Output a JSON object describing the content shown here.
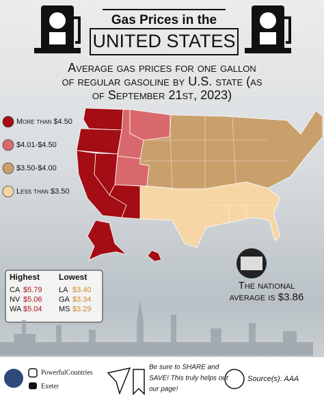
{
  "header": {
    "title_top": "Gas Prices in the",
    "title_main": "UNITED STATES",
    "subtitle_lines": [
      "Average gas prices for one gallon",
      "of regular gasoline by U.S. state (as",
      "of September 21st, 2023)"
    ]
  },
  "legend": [
    {
      "label": "More than $4.50",
      "color": "#a30d13"
    },
    {
      "label": "$4.01-$4.50",
      "color": "#d9686c"
    },
    {
      "label": "$3.50-$4.00",
      "color": "#c9a06c"
    },
    {
      "label": "Less than $3.50",
      "color": "#f7d6a5"
    }
  ],
  "table": {
    "highest": {
      "title": "Highest",
      "rows": [
        [
          "CA",
          "$5.79"
        ],
        [
          "NV",
          "$5.06"
        ],
        [
          "WA",
          "$5.04"
        ]
      ]
    },
    "lowest": {
      "title": "Lowest",
      "rows": [
        [
          "LA",
          "$3.40"
        ],
        [
          "GA",
          "$3.34"
        ],
        [
          "MS",
          "$3.29"
        ]
      ]
    }
  },
  "national": {
    "lines": [
      "The national",
      "average is $3.86"
    ]
  },
  "footer": {
    "instagram": "PowerfulCountries",
    "youtube": "Exeter",
    "share": [
      "Be sure to SHARE and",
      "SAVE! This truly helps out",
      "our page!"
    ],
    "source": "Source(s): AAA"
  }
}
